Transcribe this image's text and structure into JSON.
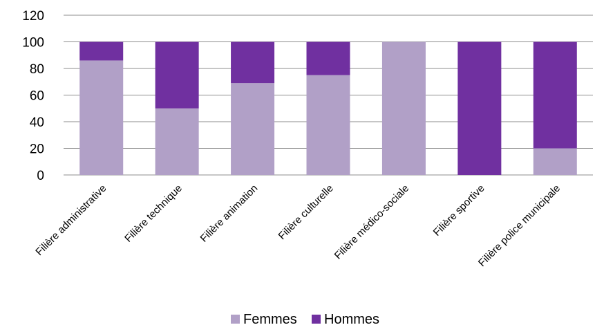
{
  "chart_data": {
    "type": "bar",
    "stacked": true,
    "categories": [
      "Filière administrative",
      "Filière technique",
      "Filière animation",
      "Filière culturelle",
      "Filière médico-sociale",
      "Filière sportive",
      "Filière police municipale"
    ],
    "series": [
      {
        "name": "Femmes",
        "color": "#b1a0c7",
        "values": [
          86,
          50,
          69,
          75,
          100,
          0,
          20
        ]
      },
      {
        "name": "Hommes",
        "color": "#7030a0",
        "values": [
          14,
          50,
          31,
          25,
          0,
          100,
          80
        ]
      }
    ],
    "y_ticks": [
      "0",
      "20",
      "40",
      "60",
      "80",
      "100",
      "120"
    ],
    "ylim": [
      0,
      120
    ],
    "grid": true,
    "legend_position": "bottom"
  }
}
